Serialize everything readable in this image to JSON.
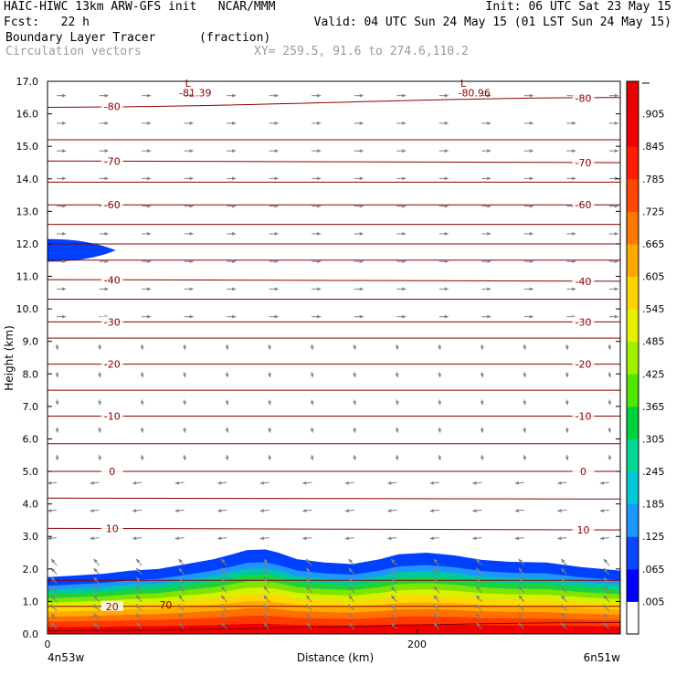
{
  "header": {
    "line1_left": "HAIC-HIWC 13km ARW-GFS init   NCAR/MMM",
    "line1_right": "Init: 06 UTC Sat 23 May 15",
    "line2_left": "Fcst:   22 h",
    "line2_right": "Valid: 04 UTC Sun 24 May 15 (01 LST Sun 24 May 15)",
    "line3_left": "Boundary Layer Tracer",
    "line3_mid": "(fraction)",
    "line4_left": "Circulation vectors",
    "line4_mid": "XY= 259.5, 91.6 to 274.6,110.2"
  },
  "chart_data": {
    "type": "heatmap",
    "ylabel": "Height (km)",
    "xlabel": "Distance (km)",
    "x_left_label": "4n53w",
    "x_right_label": "6n51w",
    "xlim": [
      0,
      310
    ],
    "ylim": [
      0.0,
      17.0
    ],
    "x_ticks": [
      {
        "value": 0,
        "label": "0"
      },
      {
        "value": 200,
        "label": "200"
      }
    ],
    "y_ticks": [
      "0.0",
      "1.0",
      "2.0",
      "3.0",
      "4.0",
      "5.0",
      "6.0",
      "7.0",
      "8.0",
      "9.0",
      "10.0",
      "11.0",
      "12.0",
      "13.0",
      "14.0",
      "15.0",
      "16.0",
      "17.0"
    ],
    "colorbar": {
      "labels": [
        ".005",
        ".065",
        ".125",
        ".185",
        ".245",
        ".305",
        ".365",
        ".425",
        ".485",
        ".545",
        ".605",
        ".665",
        ".725",
        ".785",
        ".845",
        ".905"
      ],
      "colors": [
        "#ffffff",
        "#0000ff",
        "#0a46ff",
        "#1e96ff",
        "#00c8d8",
        "#00d896",
        "#00d23c",
        "#50e600",
        "#a0f000",
        "#e6f000",
        "#ffd200",
        "#ffaa00",
        "#ff7800",
        "#ff4600",
        "#ff1e00",
        "#f00000",
        "#e60000"
      ]
    },
    "tracer_fill": {
      "top_km": [
        [
          0,
          1.75
        ],
        [
          15,
          1.8
        ],
        [
          30,
          1.85
        ],
        [
          45,
          1.95
        ],
        [
          60,
          2.0
        ],
        [
          75,
          2.15
        ],
        [
          90,
          2.3
        ],
        [
          100,
          2.45
        ],
        [
          108,
          2.58
        ],
        [
          118,
          2.6
        ],
        [
          125,
          2.5
        ],
        [
          135,
          2.3
        ],
        [
          150,
          2.2
        ],
        [
          165,
          2.15
        ],
        [
          180,
          2.3
        ],
        [
          190,
          2.45
        ],
        [
          205,
          2.5
        ],
        [
          220,
          2.42
        ],
        [
          235,
          2.28
        ],
        [
          250,
          2.22
        ],
        [
          270,
          2.2
        ],
        [
          290,
          2.05
        ],
        [
          310,
          1.95
        ]
      ],
      "band_colors": [
        "#ee0000",
        "#ff3a00",
        "#ff7000",
        "#ffaa00",
        "#ffd600",
        "#d8f000",
        "#80e400",
        "#1ed23c",
        "#00c8a0",
        "#1e96ff",
        "#0040ff"
      ],
      "blob": {
        "x0": 0,
        "x1": 37,
        "y_center": 11.8,
        "half_height": 0.35
      }
    },
    "temperature_contours": [
      {
        "y0": 0.85,
        "y1": 0.85,
        "label": "20",
        "lx": 35
      },
      {
        "y0": 0.1,
        "y1": 0.35,
        "label": "",
        "lx": 0
      },
      {
        "y0": 1.65,
        "y1": 1.65,
        "label": "",
        "lx": 0
      },
      {
        "y0": 3.25,
        "y1": 3.2,
        "label": "10",
        "lx": -1
      },
      {
        "y0": 4.18,
        "y1": 4.15,
        "label": "",
        "lx": 0
      },
      {
        "y0": 5.0,
        "y1": 5.0,
        "label": "0",
        "lx": -1
      },
      {
        "y0": 5.85,
        "y1": 5.85,
        "label": "",
        "lx": 0
      },
      {
        "y0": 6.7,
        "y1": 6.7,
        "label": "-10",
        "lx": -1
      },
      {
        "y0": 7.5,
        "y1": 7.5,
        "label": "",
        "lx": 0
      },
      {
        "y0": 8.3,
        "y1": 8.3,
        "label": "-20",
        "lx": -1
      },
      {
        "y0": 9.1,
        "y1": 9.1,
        "label": "",
        "lx": 0
      },
      {
        "y0": 9.6,
        "y1": 9.6,
        "label": "-30",
        "lx": -1
      },
      {
        "y0": 10.3,
        "y1": 10.3,
        "label": "",
        "lx": 0
      },
      {
        "y0": 10.9,
        "y1": 10.85,
        "label": "-40",
        "lx": -1
      },
      {
        "y0": 11.5,
        "y1": 11.5,
        "label": "",
        "lx": 0
      },
      {
        "y0": 12.0,
        "y1": 12.0,
        "label": "",
        "lx": 0
      },
      {
        "y0": 12.6,
        "y1": 12.6,
        "label": "",
        "lx": 0
      },
      {
        "y0": 13.2,
        "y1": 13.2,
        "label": "-60",
        "lx": -1
      },
      {
        "y0": 13.9,
        "y1": 13.9,
        "label": "",
        "lx": 0
      },
      {
        "y0": 14.55,
        "y1": 14.5,
        "label": "-70",
        "lx": -1
      },
      {
        "y0": 15.2,
        "y1": 15.2,
        "label": "",
        "lx": 0
      },
      {
        "y0": 16.2,
        "y1": 16.5,
        "label": "-80",
        "lx": -1
      }
    ],
    "extra_labels": [
      {
        "text": "70",
        "x": 64,
        "y": 0.9
      },
      {
        "text": "-81.39",
        "x": 80,
        "y": 16.65
      },
      {
        "text": "L",
        "x": 76,
        "y": 16.95
      },
      {
        "text": "-80.96",
        "x": 231,
        "y": 16.65
      },
      {
        "text": "L",
        "x": 225,
        "y": 16.95
      }
    ],
    "vector_color": "#808080",
    "contour_color": "#8b0000"
  }
}
